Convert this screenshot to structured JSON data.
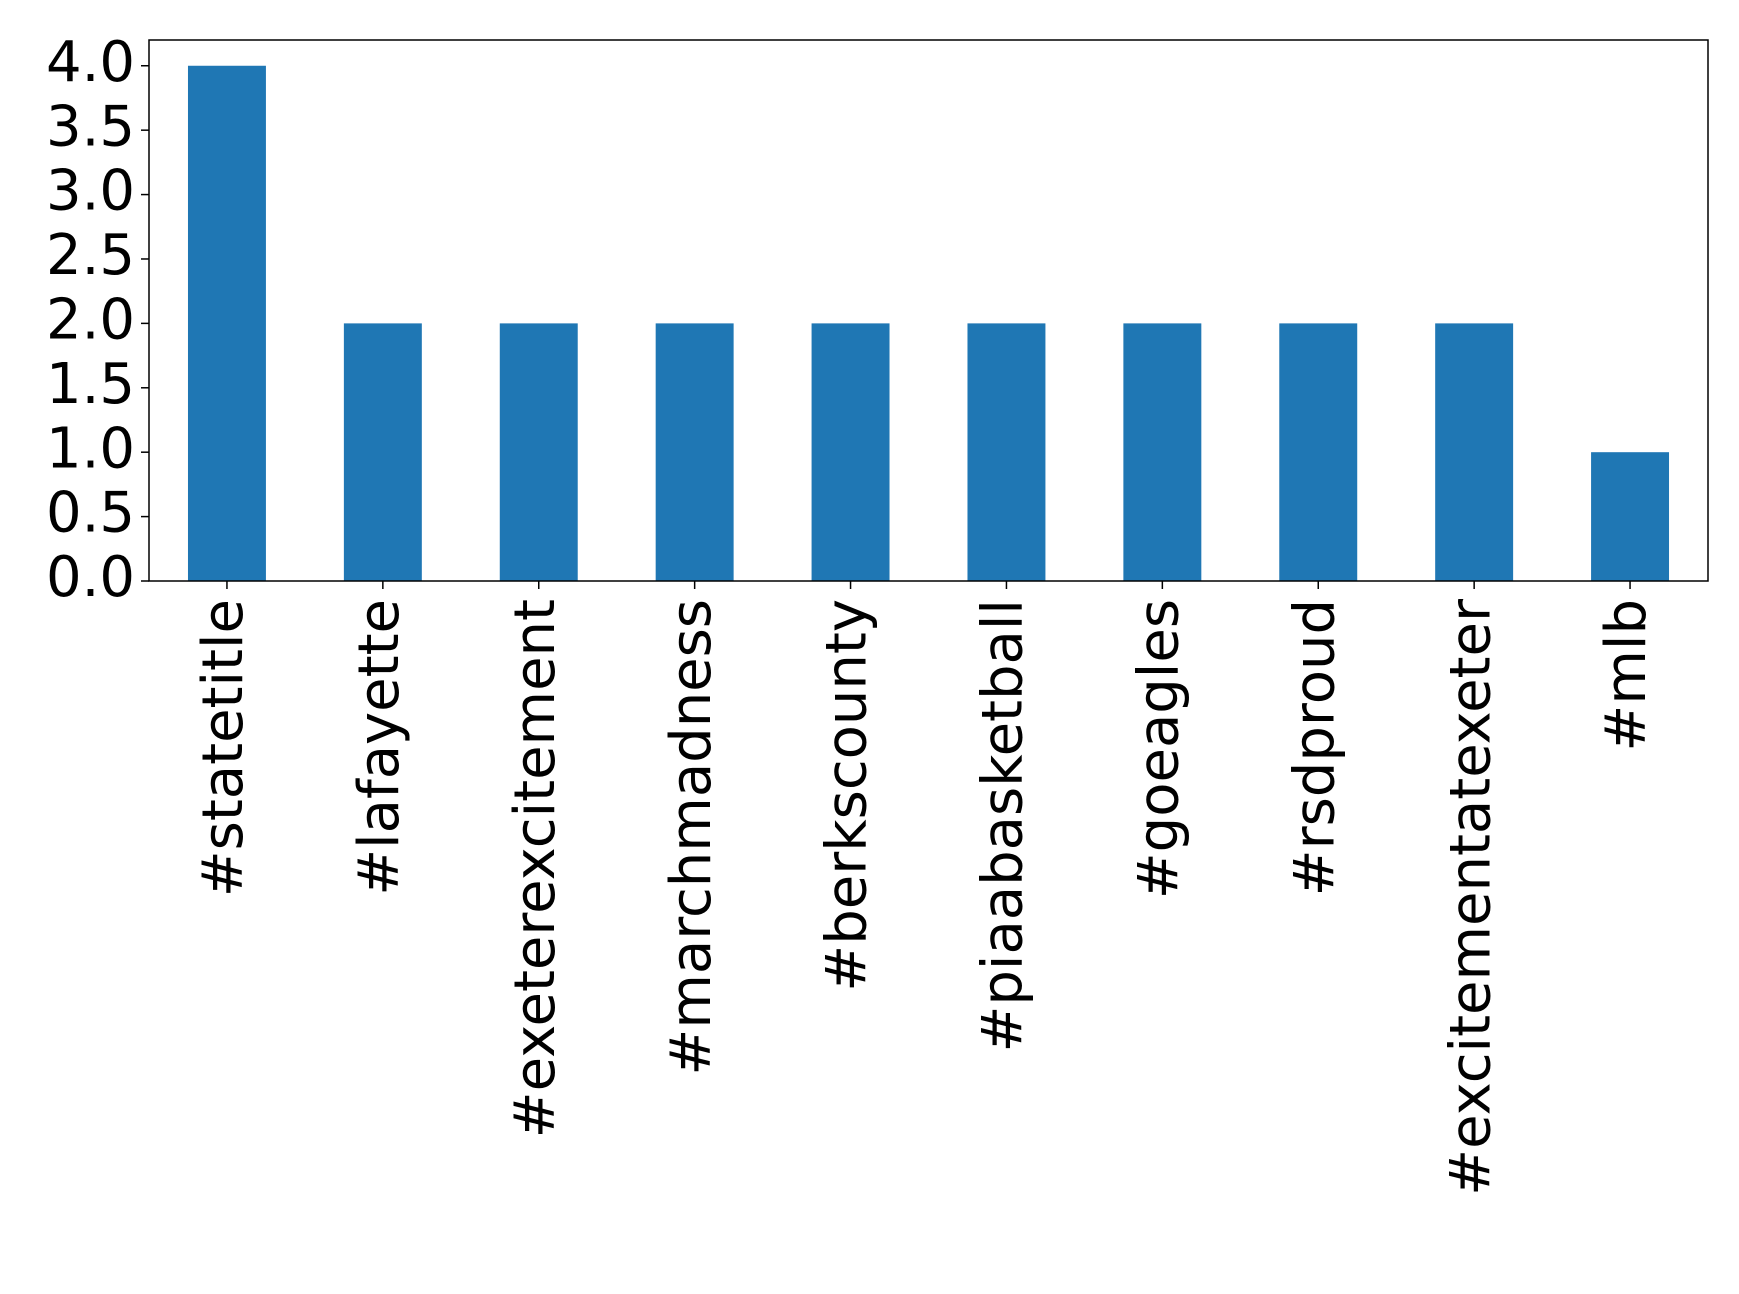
{
  "chart_data": {
    "type": "bar",
    "categories": [
      "#statetitle",
      "#lafayette",
      "#exeterexcitement",
      "#marchmadness",
      "#berkscounty",
      "#piaabasketball",
      "#goeagles",
      "#rsdproud",
      "#excitementatexeter",
      "#mlb"
    ],
    "values": [
      4,
      2,
      2,
      2,
      2,
      2,
      2,
      2,
      2,
      1
    ],
    "color": "#1f77b4",
    "ylim": [
      0,
      4.2
    ],
    "yticks": [
      {
        "value": 0,
        "label": "0.0"
      },
      0.5,
      {
        "value": 1,
        "label": "1.0"
      },
      1.5,
      {
        "value": 2,
        "label": "2.0"
      },
      2.5,
      {
        "value": 3,
        "label": "3.0"
      },
      3.5,
      {
        "value": 4,
        "label": "4.0"
      }
    ],
    "grid": false
  }
}
